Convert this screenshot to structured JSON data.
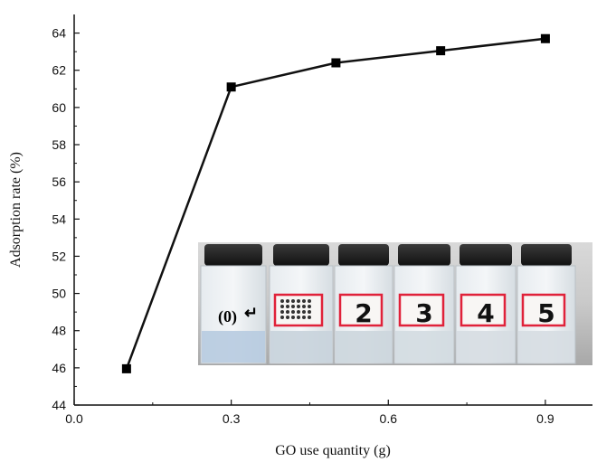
{
  "chart_data": {
    "type": "line",
    "x": [
      0.1,
      0.3,
      0.5,
      0.7,
      0.9
    ],
    "y": [
      45.95,
      61.1,
      62.4,
      63.05,
      63.7
    ],
    "xlabel": "GO use quantity (g)",
    "ylabel": "Adsorption rate (%)",
    "xlim": [
      0.0,
      0.99
    ],
    "ylim": [
      44,
      65
    ],
    "xticks": [
      "0.0",
      "0.3",
      "0.6",
      "0.9"
    ],
    "yticks": [
      "44",
      "46",
      "48",
      "50",
      "52",
      "54",
      "56",
      "58",
      "60",
      "62",
      "64"
    ],
    "marker": "square",
    "line_color": "#111111",
    "grid": false
  },
  "inset_photo": {
    "label": "(0)",
    "vial_labels": [
      "",
      "",
      "2",
      "3",
      "4",
      "5"
    ]
  }
}
